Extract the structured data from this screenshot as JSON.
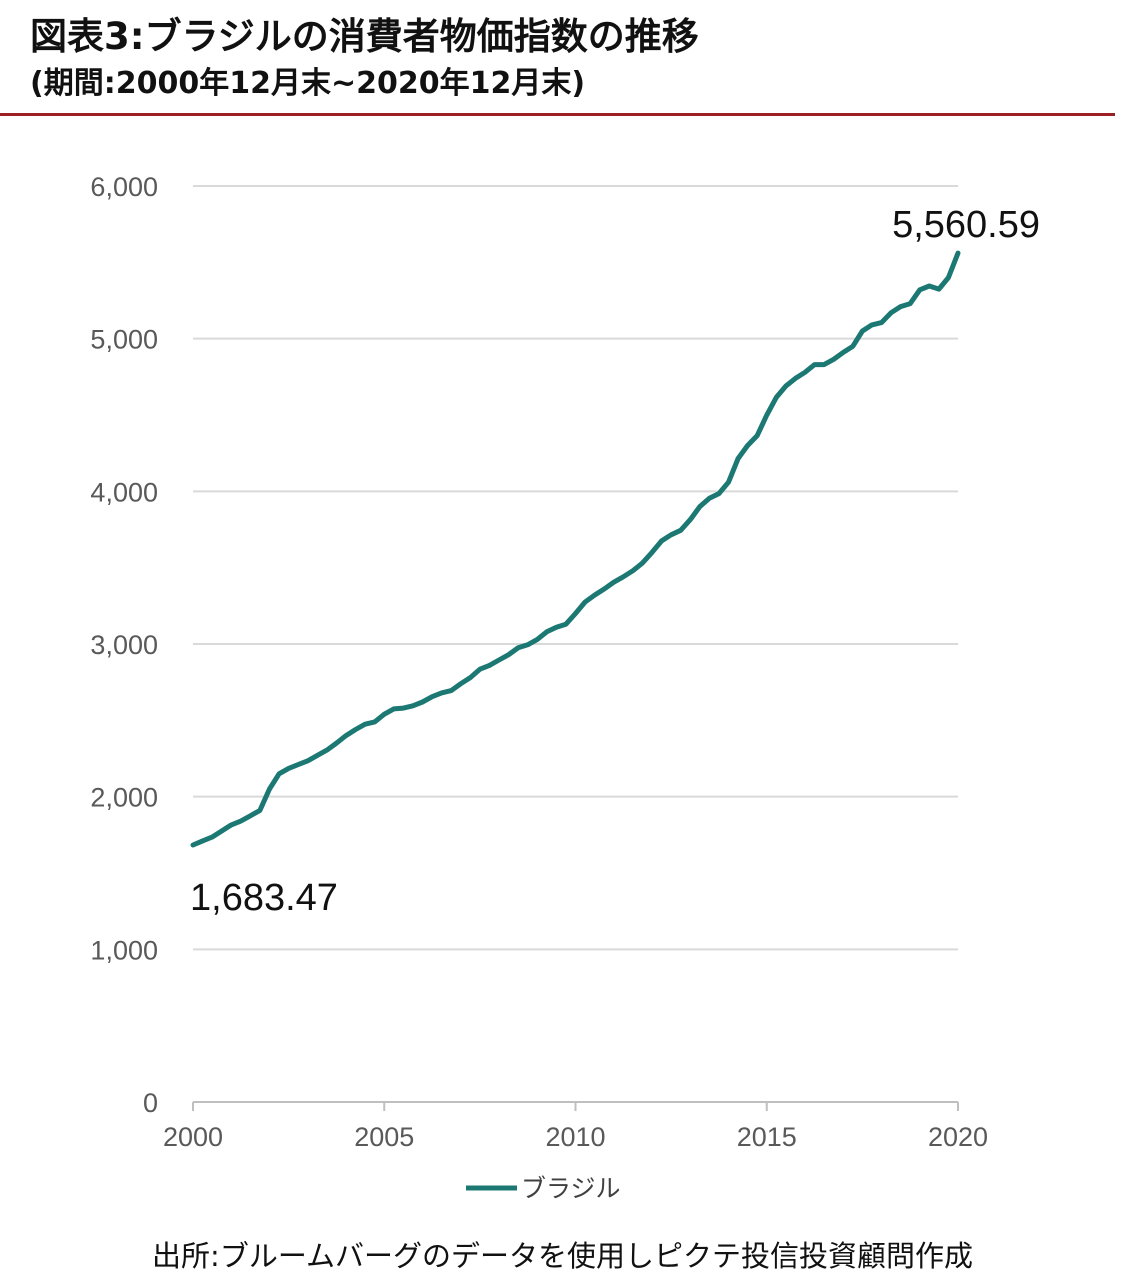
{
  "header": {
    "title": "図表3:ブラジルの消費者物価指数の推移",
    "subtitle": "(期間:2000年12月末~2020年12月末)",
    "accent_color": "#9c1f24"
  },
  "footer": {
    "source": "出所:ブルームバーグのデータを使用しピクテ投信投資顧問作成"
  },
  "chart_data": {
    "type": "line",
    "title": "図表3:ブラジルの消費者物価指数の推移",
    "xlabel": "",
    "ylabel": "",
    "xlim": [
      2000,
      2020
    ],
    "ylim": [
      0,
      6000
    ],
    "yticks": [
      0,
      1000,
      2000,
      3000,
      4000,
      5000,
      6000
    ],
    "ytick_labels": [
      "0",
      "1,000",
      "2,000",
      "3,000",
      "4,000",
      "5,000",
      "6,000"
    ],
    "xticks": [
      2000,
      2005,
      2010,
      2015,
      2020
    ],
    "xtick_labels": [
      "2000",
      "2005",
      "2010",
      "2015",
      "2020"
    ],
    "grid": true,
    "legend": "bottom-center",
    "series": [
      {
        "name": "ブラジル",
        "color": "#1c7872",
        "x": [
          2000.0,
          2000.25,
          2000.5,
          2000.75,
          2001.0,
          2001.25,
          2001.5,
          2001.75,
          2002.0,
          2002.25,
          2002.5,
          2002.75,
          2003.0,
          2003.25,
          2003.5,
          2003.75,
          2004.0,
          2004.25,
          2004.5,
          2004.75,
          2005.0,
          2005.25,
          2005.5,
          2005.75,
          2006.0,
          2006.25,
          2006.5,
          2006.75,
          2007.0,
          2007.25,
          2007.5,
          2007.75,
          2008.0,
          2008.25,
          2008.5,
          2008.75,
          2009.0,
          2009.25,
          2009.5,
          2009.75,
          2010.0,
          2010.25,
          2010.5,
          2010.75,
          2011.0,
          2011.25,
          2011.5,
          2011.75,
          2012.0,
          2012.25,
          2012.5,
          2012.75,
          2013.0,
          2013.25,
          2013.5,
          2013.75,
          2014.0,
          2014.25,
          2014.5,
          2014.75,
          2015.0,
          2015.25,
          2015.5,
          2015.75,
          2016.0,
          2016.25,
          2016.5,
          2016.75,
          2017.0,
          2017.25,
          2017.5,
          2017.75,
          2018.0,
          2018.25,
          2018.5,
          2018.75,
          2019.0,
          2019.25,
          2019.5,
          2019.75,
          2020.0
        ],
        "values": [
          1683.47,
          1710,
          1735,
          1775,
          1815,
          1840,
          1875,
          1910,
          2050,
          2150,
          2185,
          2210,
          2235,
          2270,
          2305,
          2350,
          2400,
          2440,
          2475,
          2490,
          2540,
          2575,
          2580,
          2595,
          2620,
          2655,
          2680,
          2695,
          2740,
          2780,
          2835,
          2860,
          2895,
          2930,
          2975,
          2995,
          3030,
          3080,
          3110,
          3130,
          3200,
          3275,
          3320,
          3360,
          3405,
          3440,
          3480,
          3530,
          3600,
          3675,
          3715,
          3745,
          3815,
          3900,
          3955,
          3985,
          4060,
          4215,
          4300,
          4365,
          4500,
          4615,
          4690,
          4740,
          4780,
          4830,
          4830,
          4865,
          4910,
          4950,
          5050,
          5090,
          5105,
          5170,
          5210,
          5230,
          5320,
          5345,
          5325,
          5400,
          5560.59
        ]
      }
    ],
    "annotations": [
      {
        "text": "1,683.47",
        "x": 2000.0,
        "y": 1683.47
      },
      {
        "text": "5,560.59",
        "x": 2020.0,
        "y": 5560.59
      }
    ]
  }
}
